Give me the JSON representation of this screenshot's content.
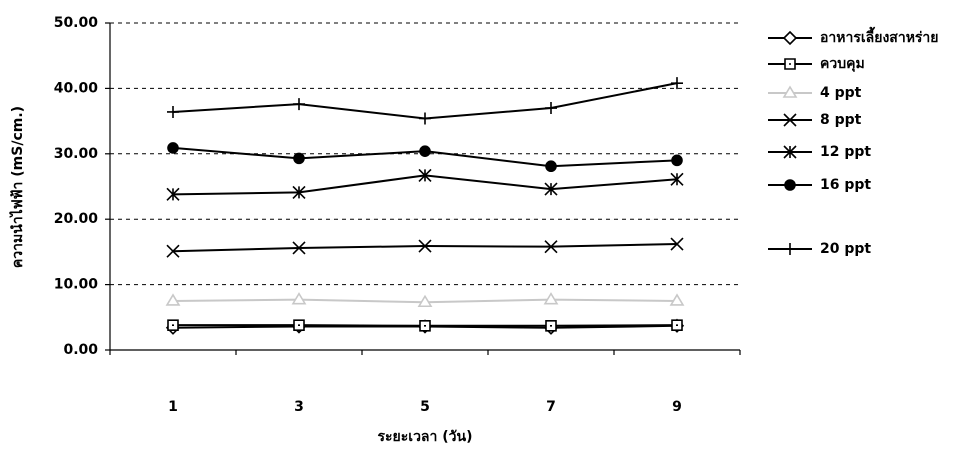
{
  "chart_data": {
    "type": "line",
    "x_label": "ระยะเวลา (วัน)",
    "y_label": "ความนำไฟฟ้า (mS/cm.)",
    "categories": [
      "1",
      "3",
      "5",
      "7",
      "9"
    ],
    "ylim": [
      0,
      50
    ],
    "yticks": [
      {
        "value": 0,
        "label": "0.00"
      },
      {
        "value": 10,
        "label": "10.00"
      },
      {
        "value": 20,
        "label": "20.00"
      },
      {
        "value": 30,
        "label": "30.00"
      },
      {
        "value": 40,
        "label": "40.00"
      },
      {
        "value": 50,
        "label": "50.00"
      }
    ],
    "grid": true,
    "legend": "right",
    "series": [
      {
        "name": "อาหารเลี้ยงสาหร่าย",
        "color": "#000000",
        "marker": "diamond",
        "values": [
          3.4,
          3.6,
          3.6,
          3.4,
          3.7
        ]
      },
      {
        "name": "ควบคุม",
        "color": "#000000",
        "marker": "square",
        "values": [
          3.8,
          3.8,
          3.7,
          3.7,
          3.8
        ]
      },
      {
        "name": "4 ppt",
        "color": "#c8c8c8",
        "marker": "triangle",
        "values": [
          7.5,
          7.7,
          7.3,
          7.7,
          7.5
        ]
      },
      {
        "name": "8 ppt",
        "color": "#000000",
        "marker": "x",
        "values": [
          15.1,
          15.6,
          15.9,
          15.8,
          16.2
        ]
      },
      {
        "name": "12 ppt",
        "color": "#000000",
        "marker": "star",
        "values": [
          23.8,
          24.1,
          26.7,
          24.6,
          26.1
        ]
      },
      {
        "name": "16 ppt",
        "color": "#000000",
        "marker": "circle",
        "values": [
          30.9,
          29.3,
          30.4,
          28.1,
          29.0
        ]
      },
      {
        "name": "20 ppt",
        "color": "#000000",
        "marker": "plus",
        "values": [
          36.4,
          37.6,
          35.4,
          37.0,
          40.8
        ]
      }
    ]
  }
}
